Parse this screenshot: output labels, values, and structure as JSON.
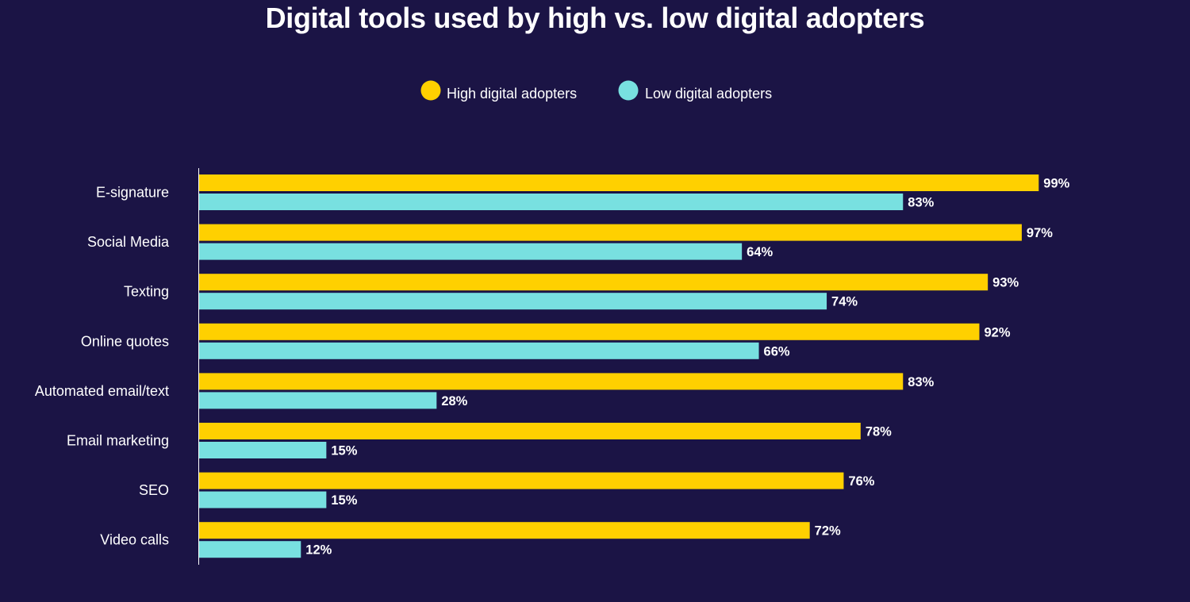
{
  "chart_data": {
    "type": "bar",
    "orientation": "horizontal",
    "title": "Digital tools used by high vs. low digital adopters",
    "categories": [
      "E-signature",
      "Social Media",
      "Texting",
      "Online quotes",
      "Automated email/text",
      "Email marketing",
      "SEO",
      "Video calls"
    ],
    "series": [
      {
        "name": "High digital adopters",
        "color": "#ffd000",
        "values": [
          99,
          97,
          93,
          92,
          83,
          78,
          76,
          72
        ]
      },
      {
        "name": "Low digital adopters",
        "color": "#78e0e0",
        "values": [
          83,
          64,
          74,
          66,
          28,
          15,
          15,
          12
        ]
      }
    ],
    "value_suffix": "%",
    "xlim": [
      0,
      100
    ],
    "xlabel": "",
    "ylabel": "",
    "grid": false,
    "legend_position": "top-center"
  }
}
